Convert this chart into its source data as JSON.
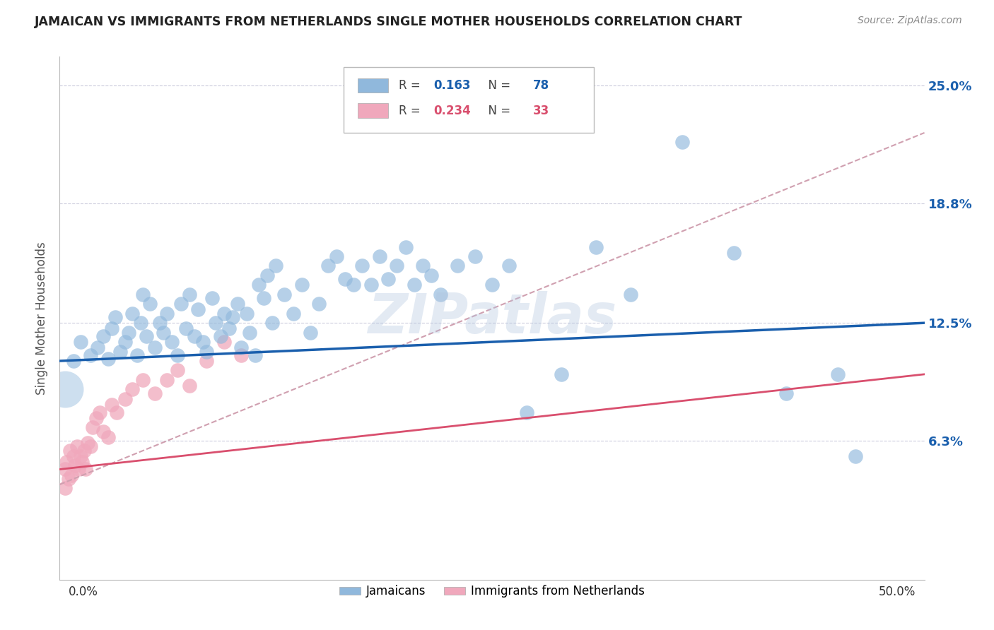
{
  "title": "JAMAICAN VS IMMIGRANTS FROM NETHERLANDS SINGLE MOTHER HOUSEHOLDS CORRELATION CHART",
  "source": "Source: ZipAtlas.com",
  "ylabel": "Single Mother Households",
  "x_min": 0.0,
  "x_max": 0.5,
  "y_min": -0.01,
  "y_max": 0.265,
  "watermark": "ZIPatlas",
  "legend_r1": "0.163",
  "legend_n1": "78",
  "legend_r2": "0.234",
  "legend_n2": "33",
  "blue_line_color": "#1a5fad",
  "pink_line_color": "#d94f6e",
  "dashed_line_color": "#d0a0b0",
  "jamaicans_color": "#90b8dc",
  "netherlands_color": "#f0a8bc",
  "background_color": "#ffffff",
  "grid_color": "#ccccdd",
  "y_ticks": [
    0.0,
    0.063,
    0.125,
    0.188,
    0.25
  ],
  "y_tick_labels": [
    "",
    "6.3%",
    "12.5%",
    "18.8%",
    "25.0%"
  ],
  "blue_line_y0": 0.105,
  "blue_line_y1": 0.125,
  "pink_line_y0": 0.048,
  "pink_line_y1": 0.098,
  "dashed_line_y0": 0.04,
  "dashed_line_y1": 0.225
}
